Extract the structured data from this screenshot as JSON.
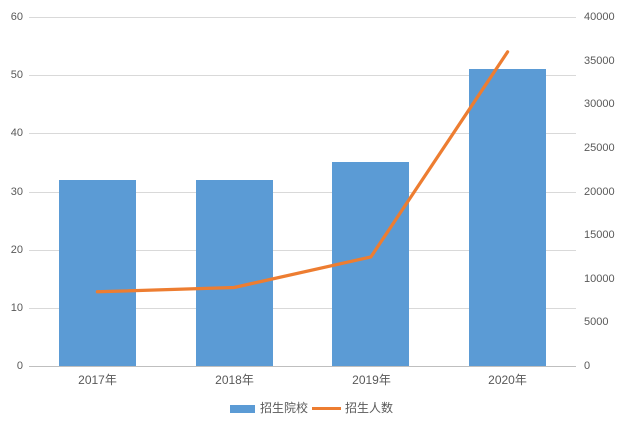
{
  "chart_data": {
    "type": "combo",
    "title": "",
    "categories": [
      "2017年",
      "2018年",
      "2019年",
      "2020年"
    ],
    "series": [
      {
        "name": "招生院校",
        "type": "bar",
        "axis": "left",
        "color": "#5b9bd5",
        "values": [
          32,
          32,
          35,
          51
        ]
      },
      {
        "name": "招生人数",
        "type": "line",
        "axis": "right",
        "color": "#ed7d31",
        "values": [
          8500,
          9000,
          12500,
          36000
        ]
      }
    ],
    "left_axis": {
      "min": 0,
      "max": 60,
      "step": 10,
      "ticks": [
        0,
        10,
        20,
        30,
        40,
        50,
        60
      ]
    },
    "right_axis": {
      "min": 0,
      "max": 40000,
      "step": 5000,
      "ticks": [
        0,
        5000,
        10000,
        15000,
        20000,
        25000,
        30000,
        35000,
        40000
      ]
    },
    "grid": "horizontal",
    "legend_position": "bottom"
  },
  "colors": {
    "bar": "#5b9bd5",
    "line": "#ed7d31",
    "gridline": "#d9d9d9",
    "axis_line": "#bfbfbf",
    "text": "#595959",
    "background": "#ffffff"
  }
}
